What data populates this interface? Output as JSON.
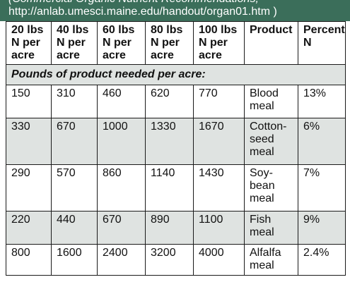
{
  "banner": {
    "line1": "(Commercial Organic Nutrient Recommendations,",
    "line2": "http://anlab.umesci.maine.edu/handout/organ01.htm )"
  },
  "table": {
    "headers": [
      "20 lbs N per acre",
      "40 lbs N per acre",
      "60 lbs N per acre",
      "80 lbs N per acre",
      "100 lbs N per acre",
      "Product",
      "Percent N"
    ],
    "section_label": "Pounds of product needed per acre:",
    "rows": [
      {
        "cells": [
          "150",
          "310",
          "460",
          "620",
          "770",
          "Blood meal",
          "13%"
        ]
      },
      {
        "cells": [
          "330",
          "670",
          "1000",
          "1330",
          "1670",
          "Cotton-seed meal",
          "6%"
        ]
      },
      {
        "cells": [
          "290",
          "570",
          "860",
          "1140",
          "1430",
          "Soy-bean meal",
          "7%"
        ]
      },
      {
        "cells": [
          "220",
          "440",
          "670",
          "890",
          "1100",
          "Fish meal",
          "9%"
        ]
      },
      {
        "cells": [
          "800",
          "1600",
          "2400",
          "3200",
          "4000",
          "Alfalfa meal",
          "2.4%"
        ]
      }
    ]
  },
  "colors": {
    "banner_bg": "#3b6e5a",
    "shaded_row": "#dfe3e1",
    "border": "#1a1a1a"
  }
}
